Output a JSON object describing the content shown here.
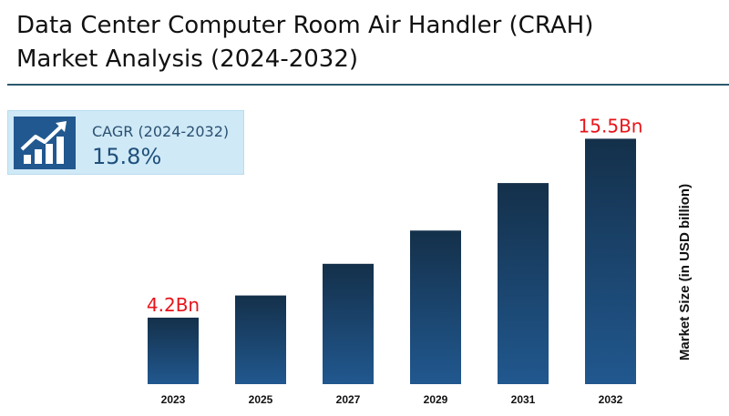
{
  "title_line1": "Data Center Computer Room Air Handler (CRAH)",
  "title_line2": "Market Analysis (2024-2032)",
  "cagr": {
    "label": "CAGR (2024-2032)",
    "value": "15.8%",
    "icon": "growth-chart-icon"
  },
  "colors": {
    "bar_top": "#14304a",
    "bar_bottom": "#21588f",
    "annotation": "#e8141a",
    "rule": "#2c5a6e"
  },
  "chart_data": {
    "type": "bar",
    "categories": [
      "2023",
      "2025",
      "2027",
      "2029",
      "2031",
      "2032"
    ],
    "values": [
      4.2,
      5.6,
      7.6,
      9.7,
      12.7,
      15.5
    ],
    "ylabel": "Market Size (in USD billion)",
    "ylim": [
      0,
      16.5
    ],
    "grid": false,
    "annotations": [
      {
        "category": "2023",
        "text": "4.2Bn"
      },
      {
        "category": "2032",
        "text": "15.5Bn"
      }
    ]
  }
}
